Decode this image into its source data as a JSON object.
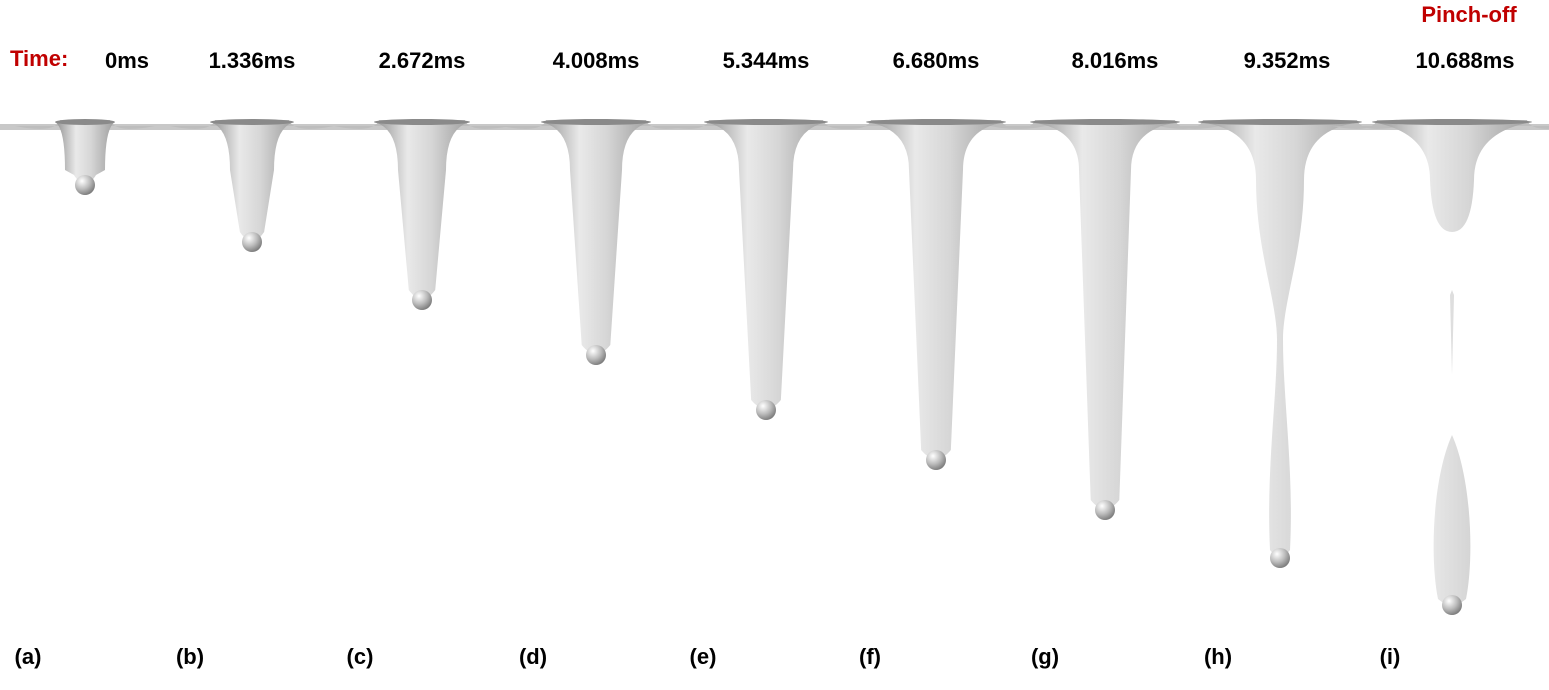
{
  "header": {
    "time_label": "Time:",
    "pinch_label": "Pinch-off"
  },
  "times": [
    "0ms",
    "1.336ms",
    "2.672ms",
    "4.008ms",
    "5.344ms",
    "6.680ms",
    "8.016ms",
    "9.352ms",
    "10.688ms"
  ],
  "panels": [
    "(a)",
    "(b)",
    "(c)",
    "(d)",
    "(e)",
    "(f)",
    "(g)",
    "(h)",
    "(i)"
  ]
}
